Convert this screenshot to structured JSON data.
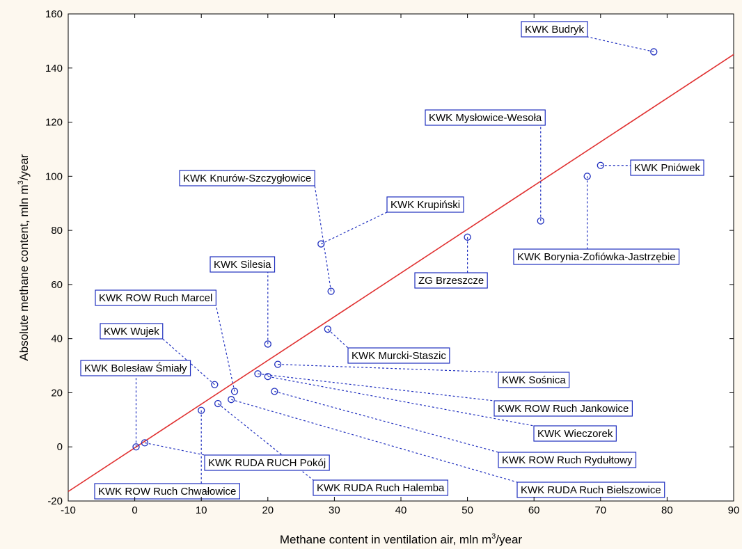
{
  "chart_data": {
    "type": "scatter",
    "xlabel": "Methane content in ventilation air, mln m",
    "xlabel_sup": "3",
    "xlabel_tail": "/year",
    "ylabel": "Absolute methane content, mln m",
    "ylabel_sup": "3",
    "ylabel_tail": "/year",
    "xlim": [
      -10,
      90
    ],
    "ylim": [
      -20,
      160
    ],
    "xticks": [
      -10,
      0,
      10,
      20,
      30,
      40,
      50,
      60,
      70,
      80,
      90
    ],
    "yticks": [
      -20,
      0,
      20,
      40,
      60,
      80,
      100,
      120,
      140,
      160
    ],
    "grid": false,
    "colors": {
      "points": "#1f2fbf",
      "fit_line": "#e03030",
      "label_border": "#1f2fbf",
      "background": "#fdf8ef",
      "plot_bg": "#ffffff"
    },
    "fit_line": {
      "x": [
        -10,
        90
      ],
      "y": [
        -16.5,
        145
      ]
    },
    "points": [
      {
        "x": 78,
        "y": 146,
        "label": "KWK Budryk"
      },
      {
        "x": 61,
        "y": 83.5,
        "label": "KWK Mysłowice-Wesoła"
      },
      {
        "x": 70,
        "y": 104,
        "label": "KWK Pniówek"
      },
      {
        "x": 68,
        "y": 100,
        "label": "KWK Borynia-Zofiówka-Jastrzębie"
      },
      {
        "x": 50,
        "y": 77.5,
        "label": "ZG Brzeszcze"
      },
      {
        "x": 28,
        "y": 75,
        "label": "KWK Krupiński"
      },
      {
        "x": 29.5,
        "y": 57.5,
        "label": "KWK Knurów-Szczygłowice"
      },
      {
        "x": 29,
        "y": 43.5,
        "label": "KWK Murcki-Staszic"
      },
      {
        "x": 20,
        "y": 38,
        "label": "KWK Silesia"
      },
      {
        "x": 21.5,
        "y": 30.5,
        "label": "KWK Sośnica"
      },
      {
        "x": 18.5,
        "y": 27,
        "label": "KWK ROW Ruch Jankowice"
      },
      {
        "x": 20,
        "y": 26,
        "label": "KWK Wieczorek"
      },
      {
        "x": 21,
        "y": 20.5,
        "label": "KWK ROW Ruch Rydułtowy"
      },
      {
        "x": 12,
        "y": 23,
        "label": "KWK Wujek"
      },
      {
        "x": 15,
        "y": 20.5,
        "label": "KWK ROW Ruch Marcel"
      },
      {
        "x": 14.5,
        "y": 17.5,
        "label": "KWK RUDA Ruch Bielszowice"
      },
      {
        "x": 12.5,
        "y": 16,
        "label": "KWK RUDA Ruch Halemba"
      },
      {
        "x": 10,
        "y": 13.5,
        "label": "KWK ROW Ruch Chwałowice"
      },
      {
        "x": 1.5,
        "y": 1.5,
        "label": "KWK RUDA RUCH Pokój"
      },
      {
        "x": 0.2,
        "y": 0,
        "label": "KWK Bolesław Śmiały"
      }
    ]
  }
}
